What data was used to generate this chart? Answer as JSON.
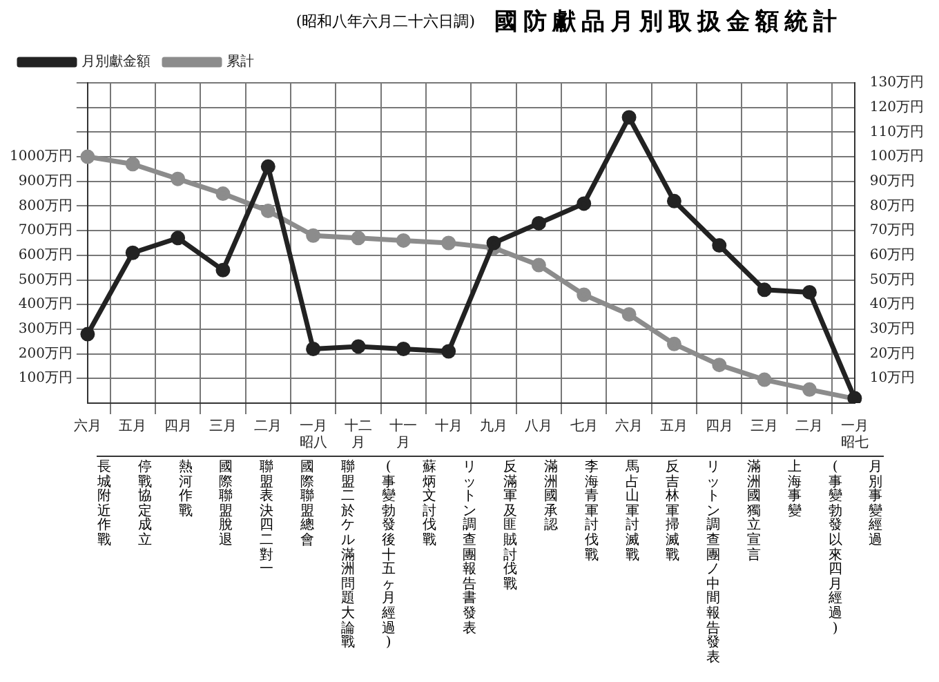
{
  "chart_data": {
    "type": "line",
    "title": "國防獻品月別取扱金額統計",
    "subtitle": "(昭和八年六月二十六日調)",
    "categories": [
      "六月",
      "五月",
      "四月",
      "三月",
      "二月",
      "一月昭八",
      "十二月",
      "十一月",
      "十月",
      "九月",
      "八月",
      "七月",
      "六月",
      "五月",
      "四月",
      "三月",
      "二月",
      "一月昭七"
    ],
    "series": [
      {
        "name": "累計",
        "color": "#8c8c8c",
        "axis": "y",
        "values": [
          1000,
          970,
          910,
          850,
          780,
          680,
          670,
          660,
          650,
          630,
          560,
          440,
          360,
          240,
          155,
          95,
          55,
          18
        ]
      },
      {
        "name": "月別獻金額",
        "color": "#222222",
        "axis": "y2",
        "values": [
          28,
          61,
          67,
          54,
          96,
          22,
          23,
          22,
          21,
          65,
          73,
          81,
          116,
          82,
          64,
          46,
          45,
          2
        ]
      }
    ],
    "ylim": [
      0,
      1300
    ],
    "yticks": [
      {
        "value": 100,
        "label": "100万円"
      },
      {
        "value": 200,
        "label": "200万円"
      },
      {
        "value": 300,
        "label": "300万円"
      },
      {
        "value": 400,
        "label": "400万円"
      },
      {
        "value": 500,
        "label": "500万円"
      },
      {
        "value": 600,
        "label": "600万円"
      },
      {
        "value": 700,
        "label": "700万円"
      },
      {
        "value": 800,
        "label": "800万円"
      },
      {
        "value": 900,
        "label": "900万円"
      },
      {
        "value": 1000,
        "label": "1000万円"
      },
      {
        "value": 1100,
        "label": null
      },
      {
        "value": 1200,
        "label": null
      },
      {
        "value": 1300,
        "label": null
      }
    ],
    "y2lim": [
      0,
      130
    ],
    "y2ticks": [
      {
        "value": 10,
        "label": "10万円"
      },
      {
        "value": 20,
        "label": "20万円"
      },
      {
        "value": 30,
        "label": "30万円"
      },
      {
        "value": 40,
        "label": "40万円"
      },
      {
        "value": 50,
        "label": "50万円"
      },
      {
        "value": 60,
        "label": "60万円"
      },
      {
        "value": 70,
        "label": "70万円"
      },
      {
        "value": 80,
        "label": "80万円"
      },
      {
        "value": 90,
        "label": "90万円"
      },
      {
        "value": 100,
        "label": "100万円"
      },
      {
        "value": 110,
        "label": "110万円"
      },
      {
        "value": 120,
        "label": "120万円"
      },
      {
        "value": 130,
        "label": "130万円"
      }
    ],
    "grid": true,
    "legend": "top left",
    "marker": "circle",
    "line_style": "solid",
    "annotations": [
      "長城附近作戰",
      "停戰協定成立",
      "熱河作戰",
      "國際聯盟脫退",
      "聯盟表決四二對一",
      "國際聯盟總會",
      "聯盟二於ケル滿洲問題大論戰",
      "(事變勃發後十五ヶ月經過)",
      "蘇炳文討伐戰",
      "リットン調查團報告書發表",
      "反滿軍及匪賊討伐戰",
      "滿洲國承認",
      "李海青軍討伐戰",
      "馬占山軍討滅戰",
      "反吉林軍掃滅戰",
      "リットン調查團ノ中間報告發表",
      "滿洲國獨立宣言",
      "上海事變",
      "(事變勃發以來四月經過)",
      "月別事變經過"
    ]
  }
}
